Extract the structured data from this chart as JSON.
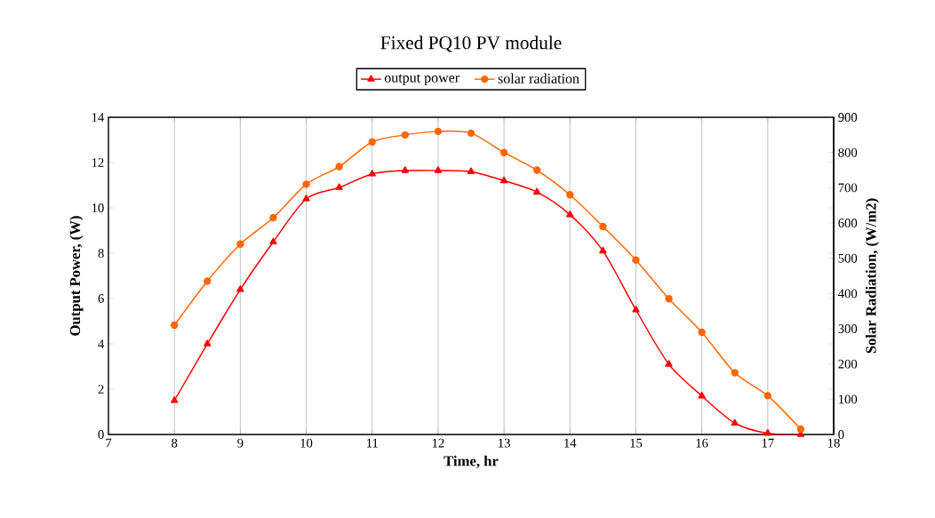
{
  "chart_data": {
    "type": "line",
    "title": "Fixed  PQ10 PV module",
    "xlabel": "Time, hr",
    "ylabel": "Output Power, (W)",
    "y2label": "Solar Radiation,  (W/m2)",
    "x": [
      8,
      8.5,
      9,
      9.5,
      10,
      10.5,
      11,
      11.5,
      12,
      12.5,
      13,
      13.5,
      14,
      14.5,
      15,
      15.5,
      16,
      16.5,
      17,
      17.5
    ],
    "series": [
      {
        "name": "output power",
        "color": "#ff0000",
        "marker": "triangle",
        "values": [
          1.5,
          4.0,
          6.4,
          8.5,
          10.4,
          10.9,
          11.5,
          11.65,
          11.65,
          11.6,
          11.2,
          10.7,
          9.7,
          8.1,
          5.5,
          3.1,
          1.7,
          0.5,
          0.05,
          0
        ]
      },
      {
        "name": "solar radiation",
        "color": "#ff6600",
        "marker": "circle",
        "axis": "y2",
        "values": [
          310,
          435,
          540,
          615,
          710,
          760,
          830,
          850,
          860,
          855,
          800,
          750,
          680,
          590,
          495,
          385,
          290,
          175,
          110,
          15
        ]
      }
    ],
    "xlim": [
      7,
      18
    ],
    "xticks": [
      7,
      8,
      9,
      10,
      11,
      12,
      13,
      14,
      15,
      16,
      17,
      18
    ],
    "ylim": [
      0,
      14
    ],
    "yticks": [
      0,
      2,
      4,
      6,
      8,
      10,
      12,
      14
    ],
    "y2lim": [
      0,
      900
    ],
    "y2ticks": [
      0,
      100,
      200,
      300,
      400,
      500,
      600,
      700,
      800,
      900
    ],
    "grid": "x",
    "legend": "top",
    "line_style": "solid"
  }
}
